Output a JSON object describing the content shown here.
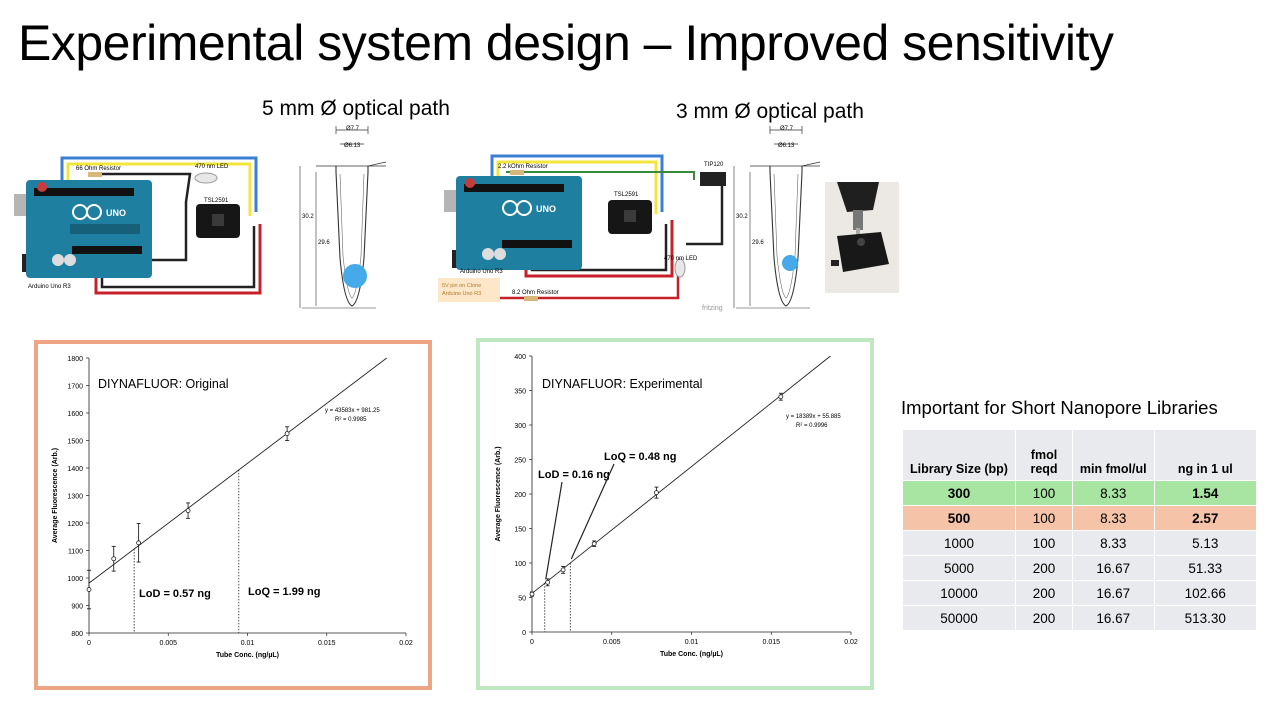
{
  "slide": {
    "title": "Experimental system design – Improved sensitivity",
    "caption_5mm": "5 mm Ø optical path",
    "caption_3mm": "3 mm Ø optical path"
  },
  "circuit1": {
    "resistor": "66 Ohm Resistor",
    "led": "470 nm LED",
    "sensor": "TSL2591",
    "board": "Arduino Uno R3",
    "board_logo": "UNO"
  },
  "circuit2": {
    "resistor_top": "2.2 kOhm Resistor",
    "transistor": "TIP120",
    "sensor": "TSL2591",
    "led": "470 nm LED",
    "board": "Arduino Uno R3",
    "note_line1": "5V pin on Clone",
    "note_line2": "Arduino Uno R3",
    "resistor_bottom": "8.2 Ohm Resistor",
    "watermark": "fritzing",
    "board_logo": "UNO"
  },
  "tube": {
    "outer_dim": "Ø7.7",
    "inner_dim": "Ø6.13",
    "height": "30.2",
    "inner_height": "29.6"
  },
  "colors": {
    "panel1_border": "#eea583",
    "panel2_border": "#bfe8c1",
    "row_green": "#a9e5a2",
    "row_orange": "#f5c3a7",
    "table_gray": "#e8eaed",
    "wire_blue": "#3b7fd4",
    "wire_yellow": "#f2e63c",
    "wire_red": "#c8202a",
    "board_teal": "#1f7fa0",
    "dot_blue": "#45a9ea"
  },
  "chart_data": [
    {
      "type": "scatter",
      "title": "DIYNAFLUOR: Original",
      "xlabel": "Tube Conc. (ng/µL)",
      "ylabel": "Average Fluorescence (Arb.)",
      "xlim": [
        0,
        0.02
      ],
      "ylim": [
        800,
        1800
      ],
      "x_ticks": [
        0,
        0.005,
        0.01,
        0.015,
        0.02
      ],
      "x_tick_labels": [
        "0",
        "0.005",
        "0.01",
        "0.015",
        "0.02"
      ],
      "y_ticks": [
        800,
        900,
        1000,
        1100,
        1200,
        1300,
        1400,
        1500,
        1600,
        1700,
        1800
      ],
      "x": [
        0,
        0.00156,
        0.00313,
        0.00625,
        0.0125
      ],
      "y": [
        958,
        1070,
        1128,
        1245,
        1525
      ],
      "err": [
        70,
        45,
        70,
        28,
        25
      ],
      "fit": {
        "slope": 43583,
        "intercept": 981.25
      },
      "equation": "y = 43583x + 981.25",
      "r2": "R² = 0.9985",
      "lod_label": "LoD = 0.57 ng",
      "loq_label": "LoQ = 1.99 ng",
      "lod_x": 0.00285,
      "loq_x": 0.00945
    },
    {
      "type": "scatter",
      "title": "DIYNAFLUOR: Experimental",
      "xlabel": "Tube Conc. (ng/µL)",
      "ylabel": "Average Fluorescence (Arb.)",
      "xlim": [
        0,
        0.02
      ],
      "ylim": [
        0,
        400
      ],
      "x_ticks": [
        0,
        0.005,
        0.01,
        0.015,
        0.02
      ],
      "x_tick_labels": [
        "0",
        "0.005",
        "0.01",
        "0.015",
        "0.02"
      ],
      "y_ticks": [
        0,
        50,
        100,
        150,
        200,
        250,
        300,
        350,
        400
      ],
      "x": [
        0,
        0.00098,
        0.00195,
        0.0039,
        0.0078,
        0.0156
      ],
      "y": [
        55,
        72,
        90,
        128,
        202,
        341
      ],
      "err": [
        3,
        5,
        5,
        4,
        8,
        5
      ],
      "fit": {
        "slope": 18389,
        "intercept": 55.885
      },
      "equation": "y = 18389x + 55.885",
      "r2": "R² = 0.9996",
      "lod_label": "LoD = 0.16 ng",
      "loq_label": "LoQ = 0.48 ng",
      "lod_x": 0.0008,
      "loq_x": 0.0024
    }
  ],
  "library_table": {
    "title": "Important for Short Nanopore Libraries",
    "headers": [
      "Library Size (bp)",
      "fmol reqd",
      "min fmol/ul",
      "ng in 1 ul"
    ],
    "rows": [
      {
        "size": "300",
        "fmol": "100",
        "min": "8.33",
        "ng": "1.54"
      },
      {
        "size": "500",
        "fmol": "100",
        "min": "8.33",
        "ng": "2.57"
      },
      {
        "size": "1000",
        "fmol": "100",
        "min": "8.33",
        "ng": "5.13"
      },
      {
        "size": "5000",
        "fmol": "200",
        "min": "16.67",
        "ng": "51.33"
      },
      {
        "size": "10000",
        "fmol": "200",
        "min": "16.67",
        "ng": "102.66"
      },
      {
        "size": "50000",
        "fmol": "200",
        "min": "16.67",
        "ng": "513.30"
      }
    ]
  }
}
